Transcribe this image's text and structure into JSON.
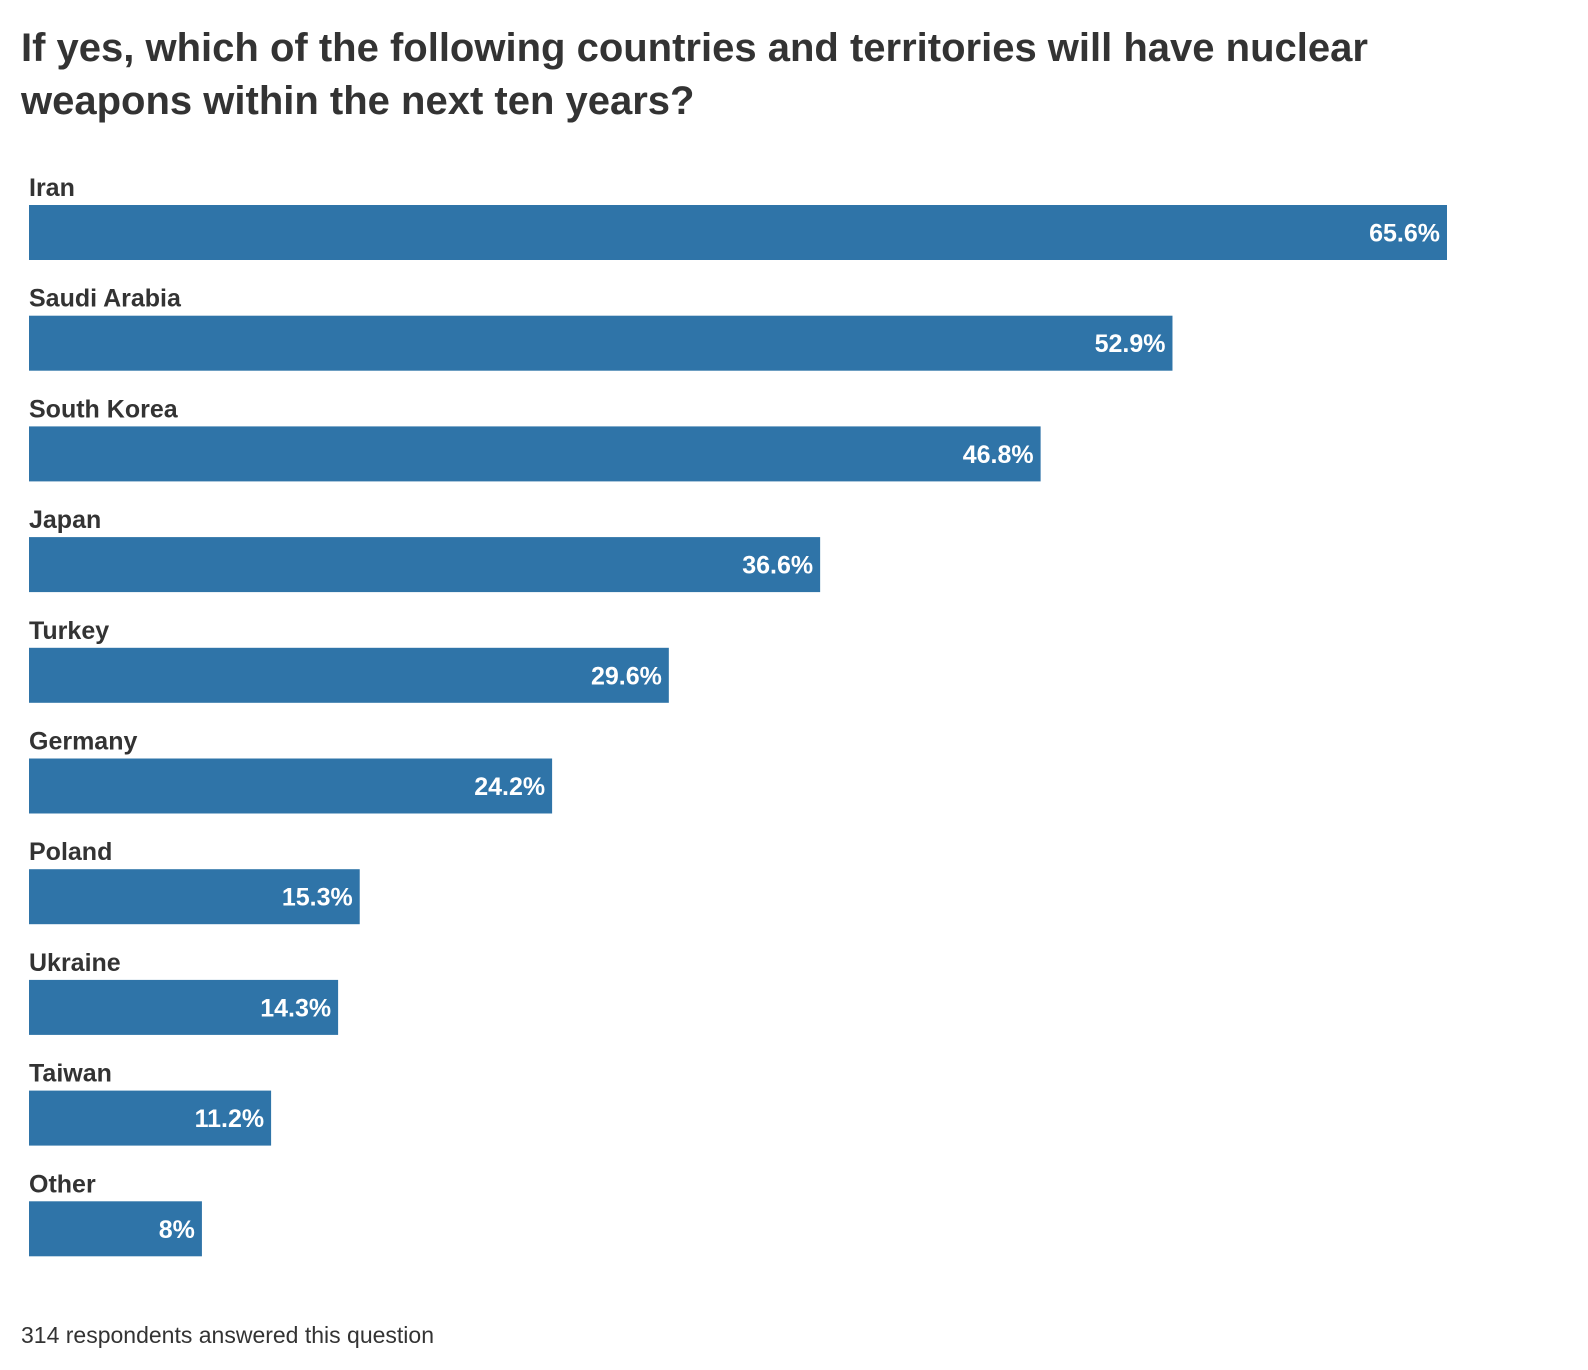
{
  "chart_data": {
    "type": "bar",
    "orientation": "horizontal",
    "title": "If yes, which of the following countries and territories will have nuclear weapons within the next ten years?",
    "categories": [
      "Iran",
      "Saudi Arabia",
      "South Korea",
      "Japan",
      "Turkey",
      "Germany",
      "Poland",
      "Ukraine",
      "Taiwan",
      "Other"
    ],
    "values": [
      65.6,
      52.9,
      46.8,
      36.6,
      29.6,
      24.2,
      15.3,
      14.3,
      11.2,
      8
    ],
    "value_labels": [
      "65.6%",
      "52.9%",
      "46.8%",
      "36.6%",
      "29.6%",
      "24.2%",
      "15.3%",
      "14.3%",
      "11.2%",
      "8%"
    ],
    "unit": "%",
    "xlabel": "",
    "ylabel": "",
    "grid": false,
    "legend": "none",
    "bar_color": "#2f74a8",
    "footnote": "314 respondents answered this question"
  }
}
